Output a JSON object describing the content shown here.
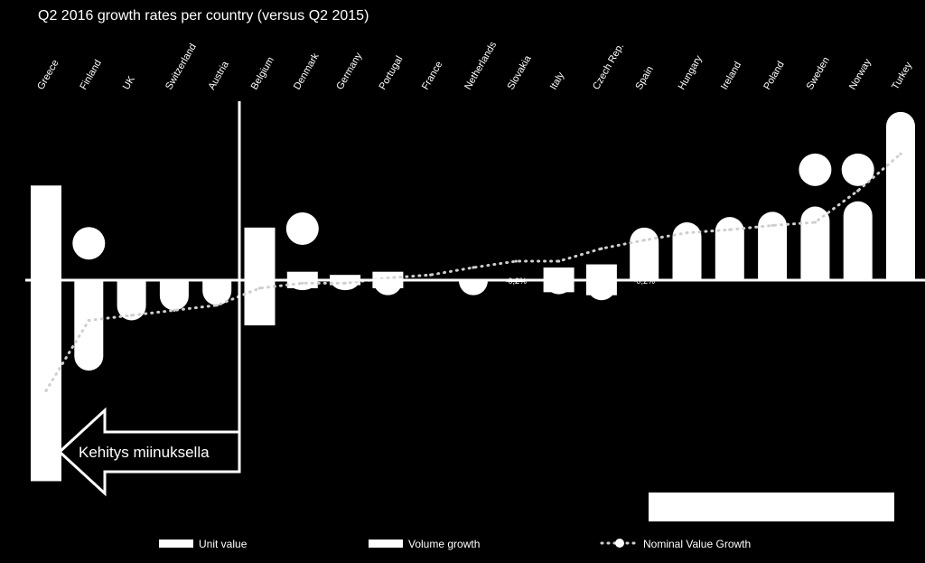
{
  "chart_data": {
    "type": "bar",
    "title": "Q2 2016 growth rates per country (versus Q2 2015)",
    "categories": [
      "Greece",
      "Finland",
      "UK",
      "Switzerland",
      "Austria",
      "Belgium",
      "Denmark",
      "Germany",
      "Portugal",
      "France",
      "Netherlands",
      "Slovakia",
      "Italy",
      "Czech Rep.",
      "Spain",
      "Hungary",
      "Ireland",
      "Poland",
      "Sweden",
      "Norway",
      "Turkey"
    ],
    "series": [
      {
        "name": "Unit value",
        "kind": "bar",
        "values": [
          9.0,
          0.0,
          0.0,
          0.0,
          0.0,
          5.0,
          0.8,
          0.5,
          0.8,
          0.0,
          0.0,
          0.0,
          1.2,
          1.5,
          0.0,
          0.0,
          0.0,
          0.0,
          0.0,
          0.0,
          0.0
        ]
      },
      {
        "name": "Volume growth",
        "kind": "bar",
        "values": [
          -20.0,
          -9.0,
          -4.0,
          -3.0,
          -2.5,
          -4.5,
          -1.0,
          -1.0,
          -1.5,
          0.0,
          -1.5,
          -0.2,
          -1.4,
          -2.0,
          5.0,
          5.5,
          6.0,
          6.5,
          7.0,
          7.5,
          16.0
        ]
      },
      {
        "name": "Nominal Value Growth",
        "kind": "line",
        "values": [
          -11.0,
          -4.0,
          -3.5,
          -3.0,
          -2.5,
          -0.8,
          -0.3,
          -0.3,
          0.2,
          0.5,
          1.2,
          1.8,
          1.8,
          3.0,
          3.8,
          4.5,
          4.8,
          5.2,
          5.5,
          8.5,
          12.0
        ]
      }
    ],
    "circles": [
      {
        "category": "Finland",
        "value": 3.5
      },
      {
        "category": "Denmark",
        "value": 4.9
      },
      {
        "category": "Sweden",
        "value": 10.5
      },
      {
        "category": "Norway",
        "value": 10.5
      }
    ],
    "data_labels": [
      {
        "category": "Slovakia",
        "text": "-0,2%"
      },
      {
        "category": "Spain",
        "text": "-0,2%"
      }
    ],
    "ylim": [
      -20.5,
      16.5
    ],
    "grid": false,
    "legend_position": "bottom",
    "annotation": {
      "text": "Kehitys miinuksella"
    }
  }
}
